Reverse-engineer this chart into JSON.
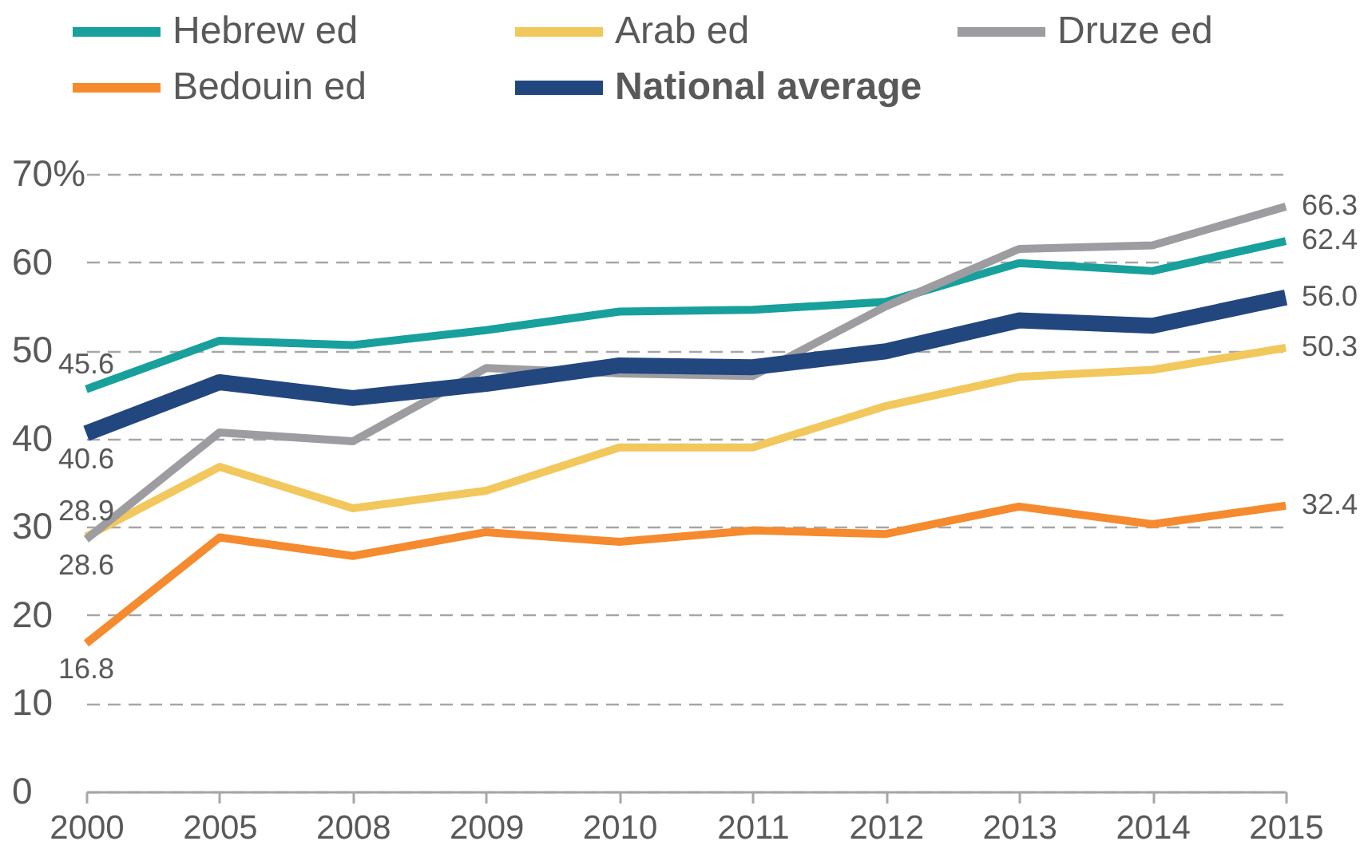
{
  "chart_data": {
    "type": "line",
    "categories": [
      "2000",
      "2005",
      "2008",
      "2009",
      "2010",
      "2011",
      "2012",
      "2013",
      "2014",
      "2015"
    ],
    "ylim": [
      0,
      70
    ],
    "yticks": [
      0,
      10,
      20,
      30,
      40,
      50,
      60,
      {
        "value": 70,
        "label": "70%"
      }
    ],
    "grid": "y",
    "legend": "top",
    "series": [
      {
        "name": "Hebrew ed",
        "color": "#17a09c",
        "values": [
          45.6,
          51.1,
          50.6,
          52.3,
          54.4,
          54.6,
          55.5,
          59.9,
          59.0,
          62.4
        ],
        "value_labels": [
          "45.6",
          null,
          null,
          null,
          null,
          null,
          null,
          null,
          null,
          "62.4"
        ]
      },
      {
        "name": "Arab ed",
        "color": "#f2c75c",
        "values": [
          28.9,
          36.8,
          32.1,
          34.1,
          39.0,
          39.0,
          43.7,
          47.0,
          47.8,
          50.3
        ],
        "value_labels": [
          "28.9",
          null,
          null,
          null,
          null,
          null,
          null,
          null,
          null,
          "50.3"
        ]
      },
      {
        "name": "Druze ed",
        "color": "#9d9da1",
        "values": [
          28.6,
          40.7,
          39.7,
          48.0,
          47.4,
          47.1,
          55.0,
          61.5,
          61.9,
          66.3
        ],
        "value_labels": [
          "28.6",
          null,
          null,
          null,
          null,
          null,
          null,
          null,
          null,
          "66.3"
        ]
      },
      {
        "name": "Bedouin ed",
        "color": "#f58a2e",
        "values": [
          16.8,
          28.8,
          26.7,
          29.4,
          28.3,
          29.6,
          29.2,
          32.3,
          30.3,
          32.4
        ],
        "value_labels": [
          "16.8",
          null,
          null,
          null,
          null,
          null,
          null,
          null,
          null,
          "32.4"
        ]
      },
      {
        "name": "National average",
        "color": "#22467e",
        "values": [
          40.6,
          46.4,
          44.6,
          46.2,
          48.3,
          48.1,
          49.9,
          53.4,
          52.8,
          56.0
        ],
        "value_labels": [
          "40.6",
          null,
          null,
          null,
          null,
          null,
          null,
          null,
          null,
          "56.0"
        ]
      }
    ]
  }
}
